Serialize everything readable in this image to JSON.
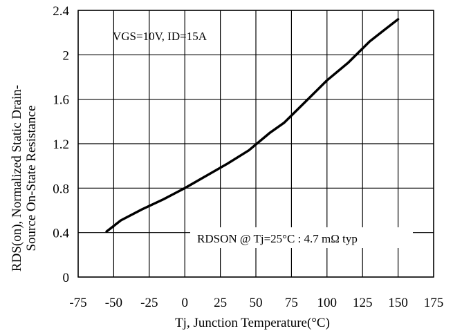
{
  "chart_data": {
    "type": "line",
    "title": "",
    "xlabel": "Tj, Junction Temperature(°C)",
    "ylabel_line1": "RDS(on), Normalized Static Drain-",
    "ylabel_line2": "Source On-State Resistance",
    "xlim": [
      -75,
      175
    ],
    "ylim": [
      0,
      2.4
    ],
    "x_ticks": [
      "-75",
      "-50",
      "-25",
      "0",
      "25",
      "50",
      "75",
      "100",
      "125",
      "150",
      "175"
    ],
    "y_ticks": [
      "0",
      "0.4",
      "0.8",
      "1.2",
      "1.6",
      "2",
      "2.4"
    ],
    "grid": true,
    "annotations": {
      "conditions": "VGS=10V, ID=15A",
      "rdson": "RDSON @ Tj=25°C : 4.7 mΩ typ"
    },
    "series": [
      {
        "x": [
          -55,
          -45,
          -30,
          -15,
          0,
          15,
          30,
          45,
          60,
          70,
          85,
          100,
          115,
          130,
          140,
          150
        ],
        "y": [
          0.41,
          0.51,
          0.61,
          0.7,
          0.8,
          0.91,
          1.02,
          1.14,
          1.3,
          1.39,
          1.58,
          1.77,
          1.93,
          2.12,
          2.22,
          2.32
        ]
      }
    ]
  }
}
